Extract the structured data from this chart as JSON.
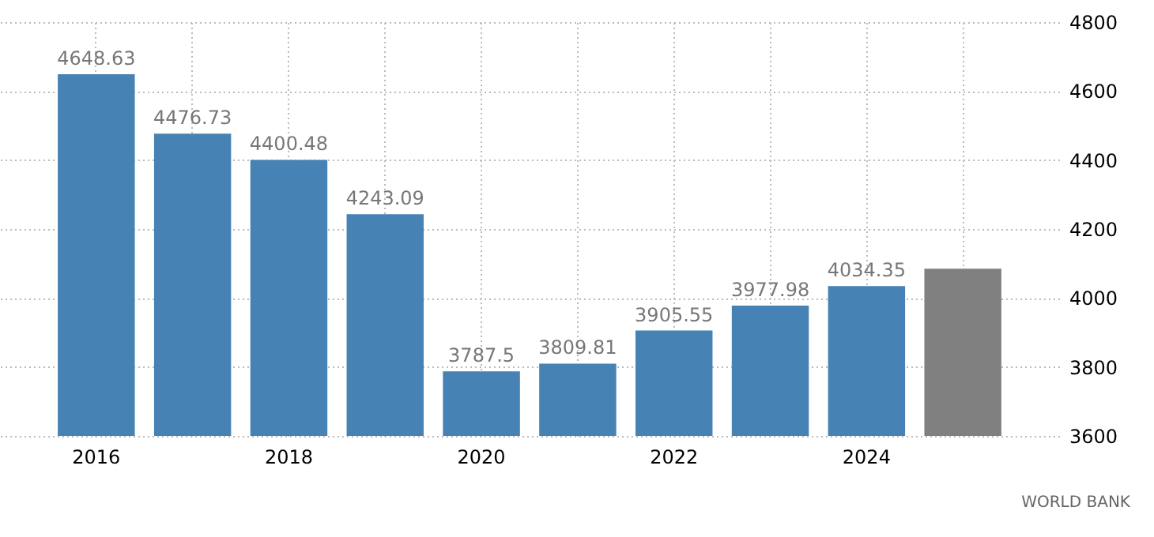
{
  "chart_data": {
    "type": "bar",
    "categories": [
      "2016",
      null,
      "2018",
      null,
      "2020",
      null,
      "2022",
      null,
      "2024",
      null
    ],
    "values": [
      4648.63,
      4476.73,
      4400.48,
      4243.09,
      3787.5,
      3809.81,
      3905.55,
      3977.98,
      4034.35,
      4085
    ],
    "colors": [
      "#4682b4",
      "#4682b4",
      "#4682b4",
      "#4682b4",
      "#4682b4",
      "#4682b4",
      "#4682b4",
      "#4682b4",
      "#4682b4",
      "#808080"
    ],
    "value_labels": [
      "4648.63",
      "4476.73",
      "4400.48",
      "4243.09",
      "3787.5",
      "3809.81",
      "3905.55",
      "3977.98",
      "4034.35",
      null
    ],
    "ylim": [
      3600,
      4800
    ],
    "yticks": [
      3600,
      3800,
      4000,
      4200,
      4400,
      4600,
      4800
    ],
    "grid": true,
    "annotations": [
      "WORLD BANK"
    ]
  }
}
